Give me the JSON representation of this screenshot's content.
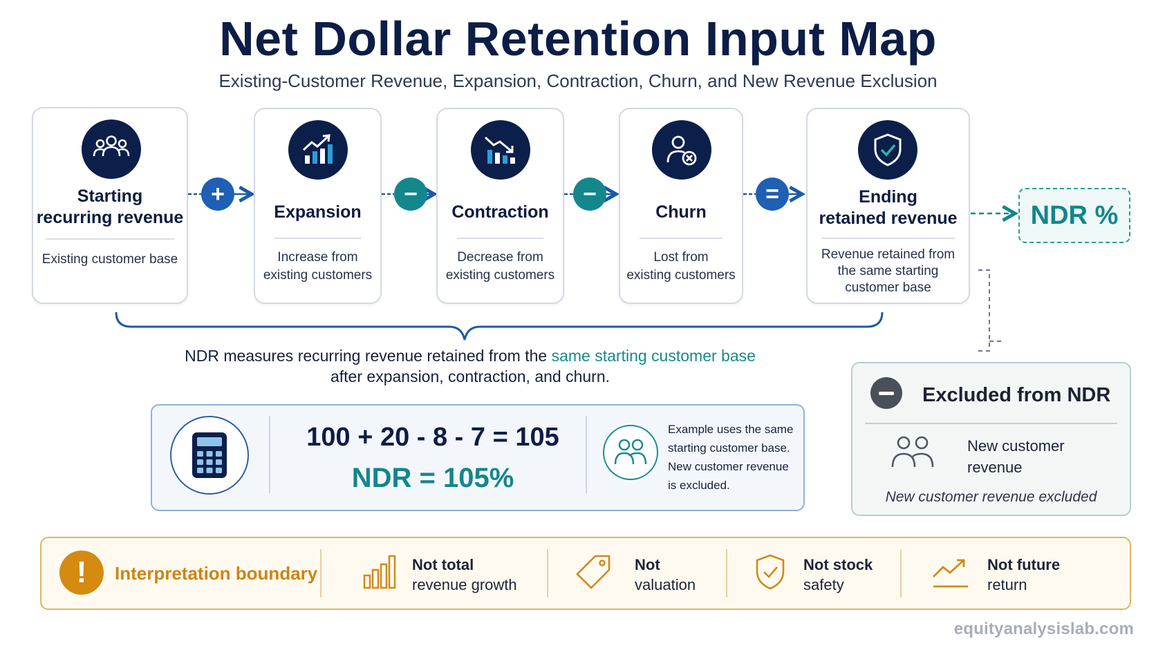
{
  "header": {
    "title": "Net Dollar Retention Input Map",
    "subtitle": "Existing-Customer Revenue, Expansion, Contraction, Churn, and New Revenue Exclusion"
  },
  "steps": [
    {
      "icon": "users-icon",
      "title_line1": "Starting",
      "title_line2": "recurring revenue",
      "desc_line1": "Existing customer base",
      "desc_line2": ""
    },
    {
      "icon": "trend-up-chart-icon",
      "title_line1": "Expansion",
      "title_line2": "",
      "desc_line1": "Increase from",
      "desc_line2": "existing customers"
    },
    {
      "icon": "trend-down-chart-icon",
      "title_line1": "Contraction",
      "title_line2": "",
      "desc_line1": "Decrease from",
      "desc_line2": "existing customers"
    },
    {
      "icon": "user-remove-icon",
      "title_line1": "Churn",
      "title_line2": "",
      "desc_line1": "Lost from",
      "desc_line2": "existing customers"
    },
    {
      "icon": "shield-check-icon",
      "title_line1": "Ending",
      "title_line2": "retained revenue",
      "desc_line1": "Revenue retained from",
      "desc_line2": "the same starting",
      "desc_line3": "customer base"
    }
  ],
  "operators": [
    "+",
    "−",
    "−",
    "="
  ],
  "result": {
    "label": "NDR %"
  },
  "note": {
    "prefix": "NDR measures recurring revenue retained from the ",
    "highlight": "same starting customer base",
    "line2": "after expansion, contraction, and churn."
  },
  "example": {
    "equation": "100 + 20 - 8 - 7 = 105",
    "ndr": "NDR = 105%",
    "text_line1": "Example uses the same",
    "text_line2": "starting customer base.",
    "text_line3": "New customer revenue",
    "text_line4": "is excluded."
  },
  "excluded": {
    "title": "Excluded from NDR",
    "label_line1": "New customer",
    "label_line2": "revenue",
    "note": "New customer revenue excluded"
  },
  "boundary": {
    "title": "Interpretation boundary",
    "items": [
      {
        "icon": "bar-chart-icon",
        "line1": "Not total",
        "line2": "revenue growth"
      },
      {
        "icon": "tag-icon",
        "line1": "Not",
        "line2": "valuation"
      },
      {
        "icon": "shield-check-icon",
        "line1": "Not stock",
        "line2": "safety"
      },
      {
        "icon": "trend-up-icon",
        "line1": "Not future",
        "line2": "return"
      }
    ]
  },
  "footer": {
    "site": "equityanalysislab.com"
  },
  "colors": {
    "navy": "#0b1f4a",
    "teal": "#14878c",
    "blue": "#1f5fb4",
    "amber": "#d58a10"
  }
}
